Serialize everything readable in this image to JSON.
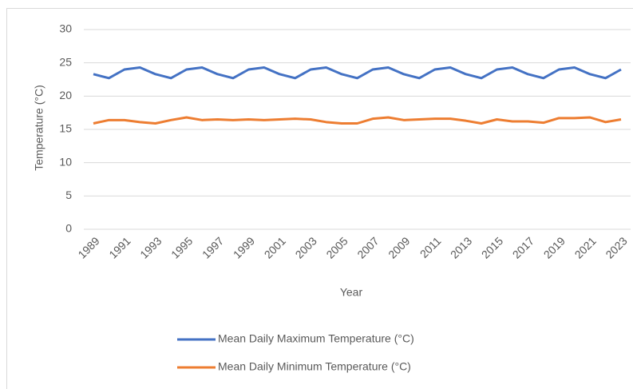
{
  "chart_data": {
    "type": "line",
    "y_label": "Temperature (°C)",
    "x_label": "Year",
    "categories": [
      "1989",
      null,
      "1991",
      null,
      "1993",
      null,
      "1995",
      null,
      "1997",
      null,
      "1999",
      null,
      "2001",
      null,
      "2003",
      null,
      "2005",
      null,
      "2007",
      null,
      "2009",
      null,
      "2011",
      null,
      "2013",
      null,
      "2015",
      null,
      "2017",
      null,
      "2019",
      null,
      "2021",
      null,
      "2023"
    ],
    "series": [
      {
        "name": "Mean Daily Maximum Temperature (°C)",
        "color": "#4472c4",
        "values": [
          23.3,
          22.7,
          24.0,
          24.3,
          23.3,
          22.7,
          24.0,
          24.3,
          23.3,
          22.7,
          24.0,
          24.3,
          23.3,
          22.7,
          24.0,
          24.3,
          23.3,
          22.7,
          24.0,
          24.3,
          23.3,
          22.7,
          24.0,
          24.3,
          23.3,
          22.7,
          24.0,
          24.3,
          23.3,
          22.7,
          24.0,
          24.3,
          23.3,
          22.7,
          24.0
        ]
      },
      {
        "name": "Mean Daily Minimum Temperature (°C)",
        "color": "#ed7d31",
        "values": [
          15.9,
          16.4,
          16.4,
          16.1,
          15.9,
          16.4,
          16.8,
          16.4,
          16.5,
          16.4,
          16.5,
          16.4,
          16.5,
          16.6,
          16.5,
          16.1,
          15.9,
          15.9,
          16.6,
          16.8,
          16.4,
          16.5,
          16.6,
          16.6,
          16.3,
          15.9,
          16.5,
          16.2,
          16.2,
          16.0,
          16.7,
          16.7,
          16.8,
          16.1,
          16.5
        ]
      }
    ],
    "ylim": [
      0,
      30
    ],
    "yticks": [
      0,
      5,
      10,
      15,
      20,
      25,
      30
    ],
    "grid": true,
    "legend": "bottom"
  }
}
